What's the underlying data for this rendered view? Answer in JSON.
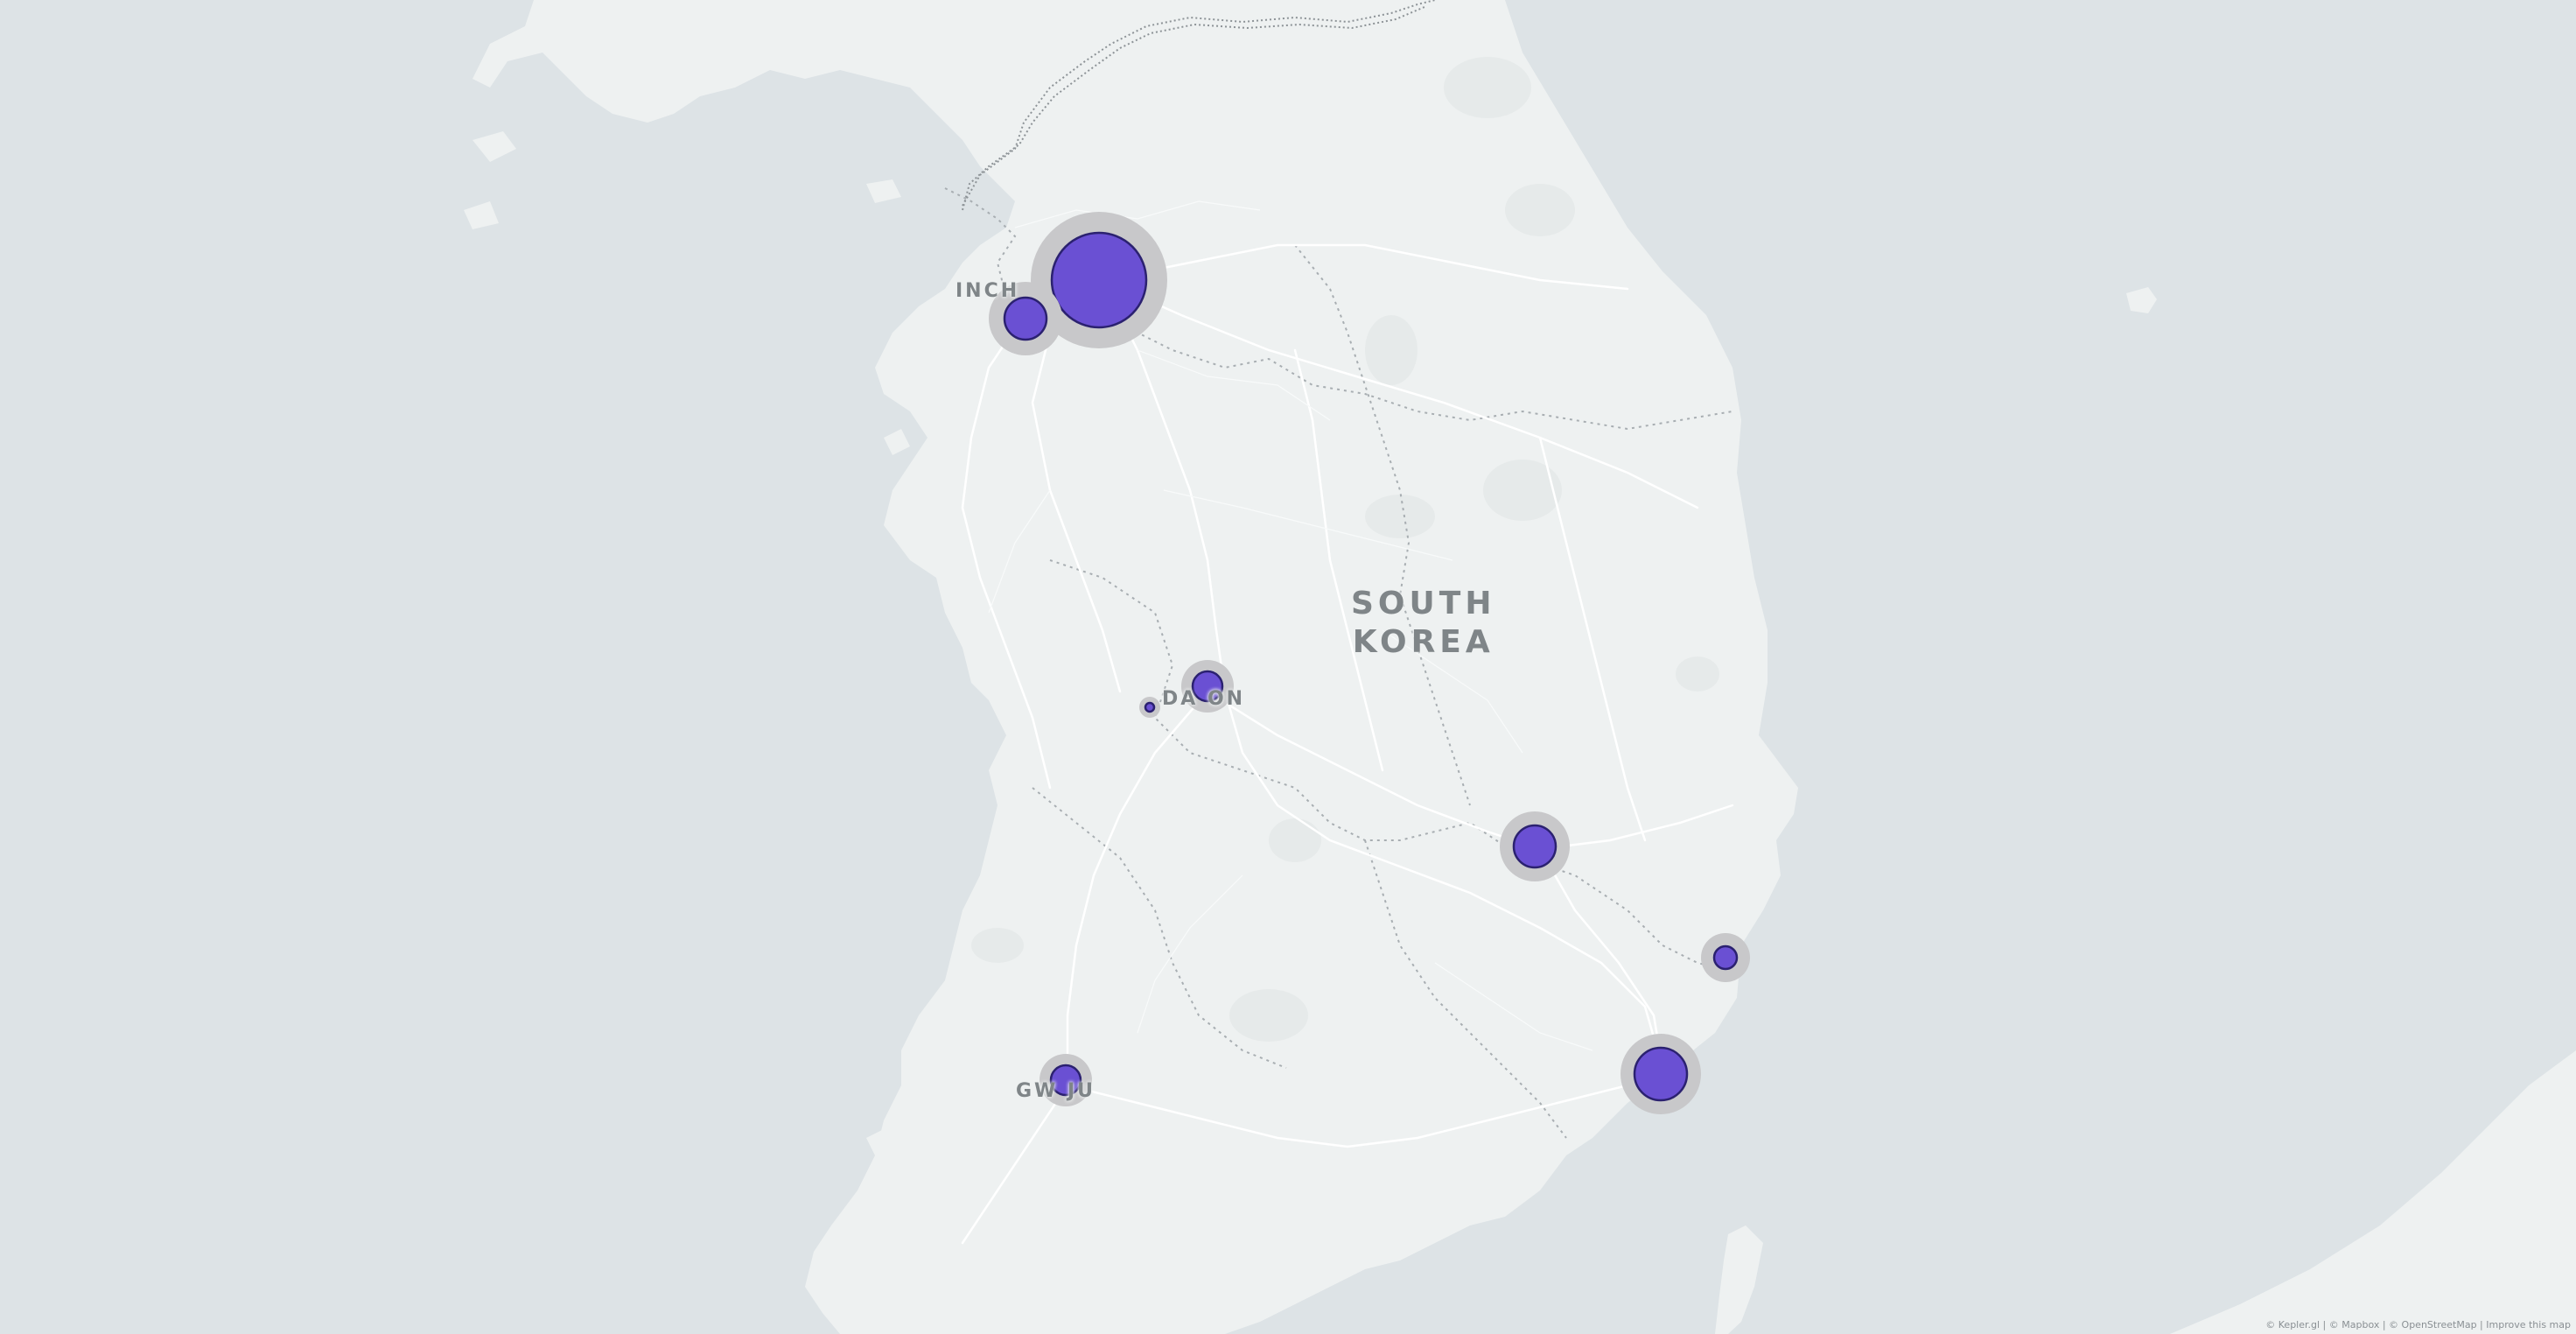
{
  "map": {
    "country_label_line1": "SOUTH",
    "country_label_line2": "KOREA",
    "cities": [
      {
        "name": "INCHEON",
        "visible_text": "INCH"
      },
      {
        "name": "DAEJEON",
        "visible_text": "DA  ON"
      },
      {
        "name": "GWANGJU",
        "visible_text": "GW  JU"
      }
    ]
  },
  "bubbles_layer": {
    "fill_color": "#6a50d3",
    "stroke_color": "#2b2170",
    "halo_color": "#c8c8ca"
  },
  "colors": {
    "water": "#dde3e6",
    "land": "#eef1f1",
    "road": "#ffffff",
    "border": "#a8aeb2"
  },
  "attribution": "© Kepler.gl | © Mapbox | © OpenStreetMap | Improve this map"
}
